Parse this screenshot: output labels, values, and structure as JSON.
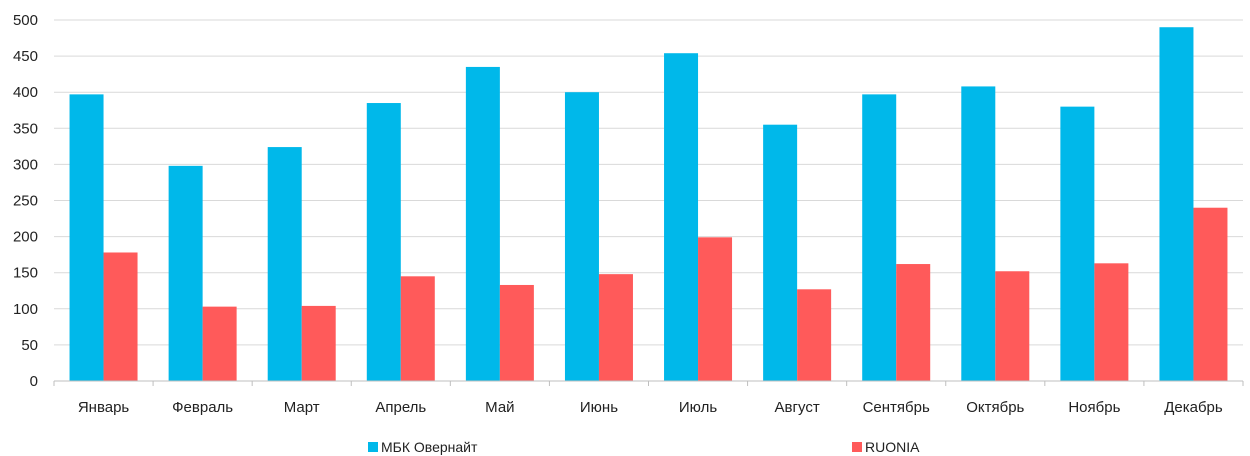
{
  "chart_data": {
    "type": "bar",
    "categories": [
      "Январь",
      "Февраль",
      "Март",
      "Апрель",
      "Май",
      "Июнь",
      "Июль",
      "Август",
      "Сентябрь",
      "Октябрь",
      "Ноябрь",
      "Декабрь"
    ],
    "series": [
      {
        "name": "МБК Овернайт",
        "color": "#00b8ea",
        "values": [
          397,
          298,
          324,
          385,
          435,
          400,
          454,
          355,
          397,
          408,
          380,
          490
        ]
      },
      {
        "name": "RUONIA",
        "color": "#ff5a5a",
        "values": [
          178,
          103,
          104,
          145,
          133,
          148,
          199,
          127,
          162,
          152,
          163,
          240
        ]
      }
    ],
    "y_ticks": [
      0,
      50,
      100,
      150,
      200,
      250,
      300,
      350,
      400,
      450,
      500
    ],
    "ylim": [
      0,
      500
    ],
    "grid": true,
    "legend_position": "bottom",
    "title": "",
    "xlabel": "",
    "ylabel": ""
  }
}
